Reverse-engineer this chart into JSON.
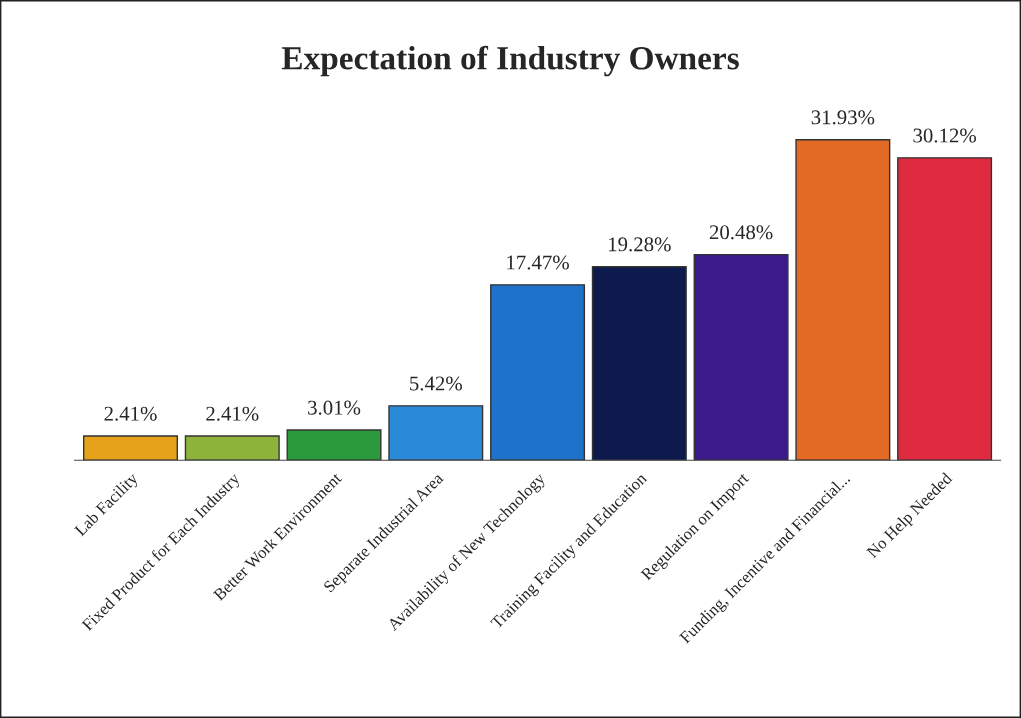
{
  "chart_data": {
    "type": "bar",
    "title": "Expectation of Industry Owners",
    "categories": [
      "Lab Facility",
      "Fixed Product for Each Industry",
      "Better Work Environment",
      "Separate Industrial Area",
      "Availability of New Technology",
      "Training Facility and Education",
      "Regulation on Import",
      "Funding, Incentive and Financial...",
      "No Help Needed"
    ],
    "values": [
      2.41,
      2.41,
      3.01,
      5.42,
      17.47,
      19.28,
      20.48,
      31.93,
      30.12
    ],
    "value_labels": [
      "2.41%",
      "2.41%",
      "3.01%",
      "5.42%",
      "17.47%",
      "19.28%",
      "20.48%",
      "31.93%",
      "30.12%"
    ],
    "colors": [
      "#e5a21a",
      "#8db33a",
      "#2a9a3c",
      "#2a8ad8",
      "#1f72c9",
      "#0d1a4e",
      "#3b1a8c",
      "#e36a22",
      "#e02a40"
    ],
    "tick_labels": "x",
    "grid": false
  }
}
